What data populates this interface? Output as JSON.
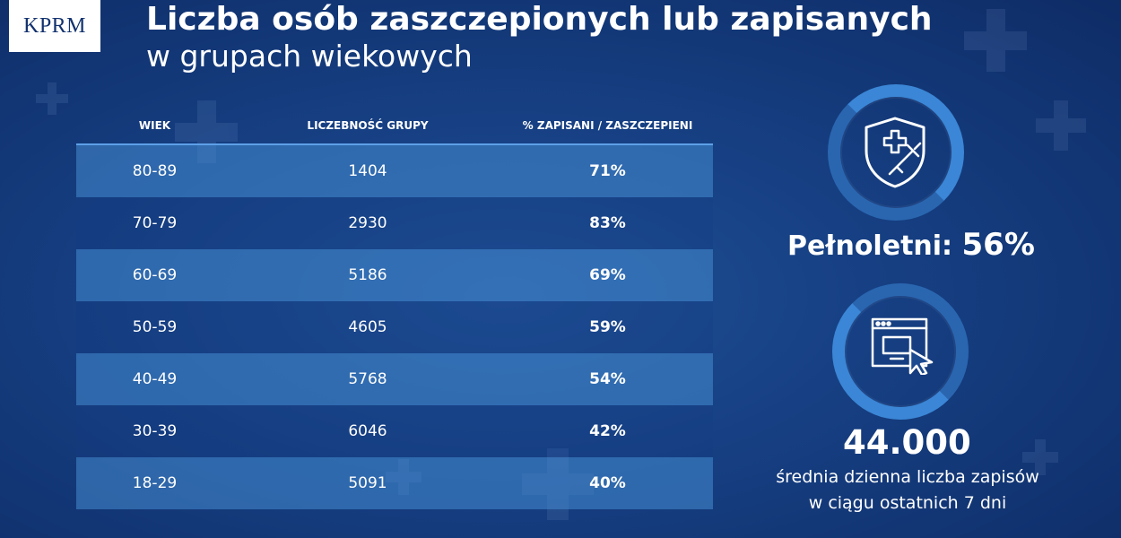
{
  "header": {
    "logo": "KPRM",
    "title": "Liczba osób zaszczepionych lub zapisanych",
    "subtitle": "w grupach wiekowych"
  },
  "table": {
    "columns": [
      "WIEK",
      "LICZEBNOŚĆ GRUPY",
      "% ZAPISANI / ZASZCZEPIENI"
    ],
    "rows": [
      {
        "age": "80-89",
        "count": "1404",
        "percent": "71%"
      },
      {
        "age": "70-79",
        "count": "2930",
        "percent": "83%"
      },
      {
        "age": "60-69",
        "count": "5186",
        "percent": "69%"
      },
      {
        "age": "50-59",
        "count": "4605",
        "percent": "59%"
      },
      {
        "age": "40-49",
        "count": "5768",
        "percent": "54%"
      },
      {
        "age": "30-39",
        "count": "6046",
        "percent": "42%"
      },
      {
        "age": "18-29",
        "count": "5091",
        "percent": "40%"
      }
    ]
  },
  "stats": {
    "adult_label": "Pełnoletni:",
    "adult_value": "56%",
    "daily_number": "44.000",
    "daily_desc_line1": "średnia dzienna liczba zapisów",
    "daily_desc_line2": "w ciągu ostatnich 7 dni"
  },
  "icons": {
    "shield": "shield-vaccine-icon",
    "browser": "browser-click-icon"
  },
  "colors": {
    "background": "#163f82",
    "row_light": "#3e7fc6",
    "accent_line": "#5ea0e8"
  }
}
